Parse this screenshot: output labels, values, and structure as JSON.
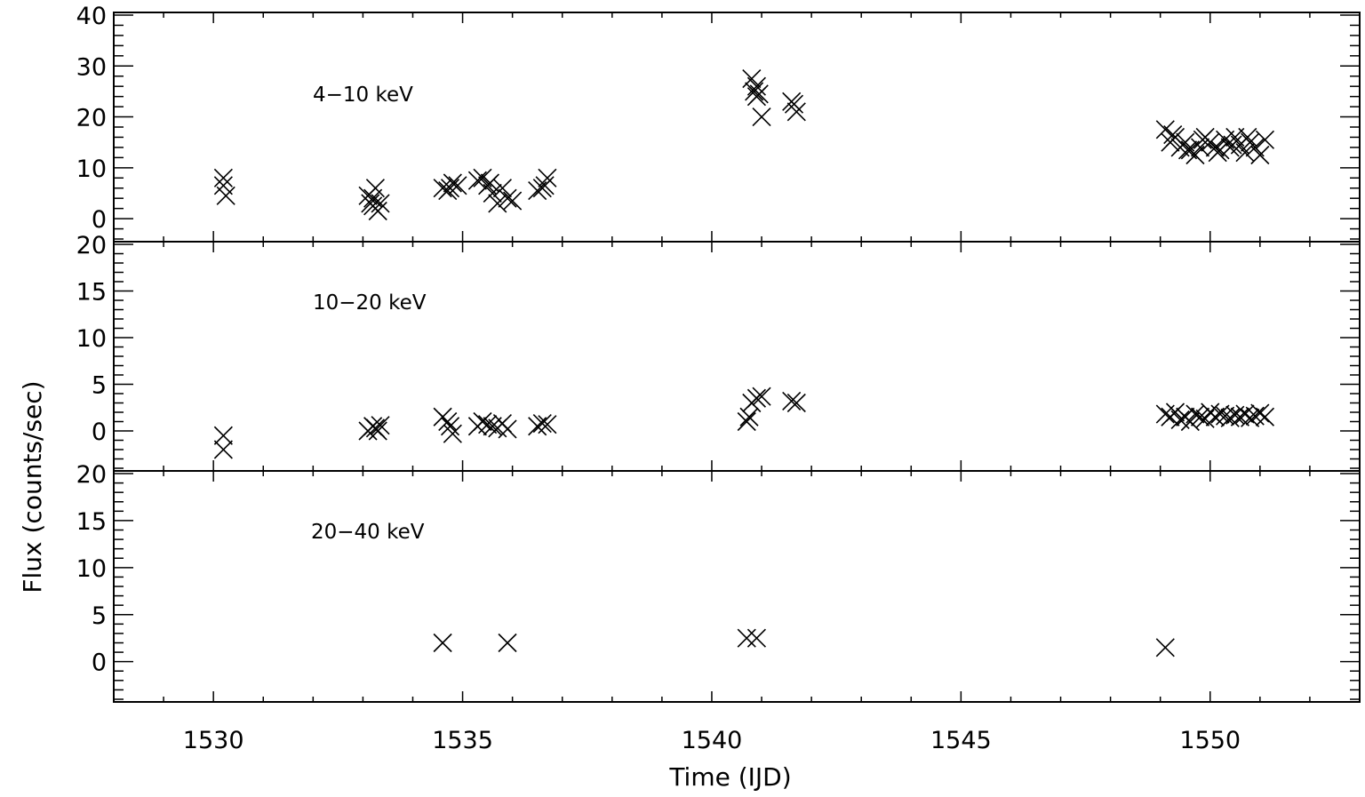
{
  "chart_data": {
    "type": "scatter",
    "xlabel": "Time (IJD)",
    "ylabel": "Flux (counts/sec)",
    "xlim": [
      1528,
      1553
    ],
    "xticks": [
      1530,
      1535,
      1540,
      1545,
      1550
    ],
    "marker": "x",
    "color": "#000000",
    "panels": [
      {
        "label": "4−10 keV",
        "ylim": [
          -4,
          40
        ],
        "yticks": [
          0,
          10,
          20,
          30,
          40
        ],
        "x": [
          1530.2,
          1530.2,
          1530.25,
          1533.1,
          1533.15,
          1533.2,
          1533.25,
          1533.3,
          1533.35,
          1533.2,
          1534.6,
          1534.7,
          1534.8,
          1534.75,
          1534.9,
          1535.3,
          1535.4,
          1535.5,
          1535.6,
          1535.7,
          1535.8,
          1535.9,
          1536.0,
          1535.55,
          1536.5,
          1536.6,
          1536.7,
          1536.65,
          1540.8,
          1540.85,
          1540.9,
          1540.95,
          1541.0,
          1540.9,
          1541.6,
          1541.7,
          1541.65,
          1549.1,
          1549.2,
          1549.3,
          1549.4,
          1549.5,
          1549.6,
          1549.7,
          1549.8,
          1549.9,
          1550.0,
          1550.1,
          1550.2,
          1550.3,
          1550.4,
          1550.5,
          1550.6,
          1550.7,
          1550.8,
          1550.9,
          1551.0,
          1551.1,
          1549.25,
          1549.55,
          1549.85,
          1550.15,
          1550.45,
          1550.75
        ],
        "y": [
          8,
          6.5,
          4.5,
          4.5,
          3,
          4,
          6,
          1.5,
          3,
          2.5,
          6,
          5.5,
          7,
          6,
          6.5,
          7.5,
          8,
          6.5,
          5,
          3,
          6,
          4,
          3.5,
          7,
          5.5,
          6,
          8,
          6.5,
          27.5,
          25,
          26,
          24.5,
          20,
          24,
          23,
          21,
          22.5,
          17.5,
          15,
          16,
          14,
          15,
          13.5,
          12.5,
          14,
          16,
          15,
          14,
          13.5,
          15.5,
          14,
          16,
          14.5,
          13,
          15,
          14,
          12.5,
          15.5,
          16.5,
          13.5,
          15.5,
          13,
          14.5,
          16
        ]
      },
      {
        "label": "10−20 keV",
        "ylim": [
          -4,
          20
        ],
        "yticks": [
          0,
          5,
          10,
          15,
          20
        ],
        "x": [
          1530.2,
          1530.2,
          1533.1,
          1533.2,
          1533.3,
          1533.25,
          1533.35,
          1534.6,
          1534.7,
          1534.8,
          1534.75,
          1535.3,
          1535.4,
          1535.5,
          1535.6,
          1535.7,
          1535.8,
          1535.9,
          1536.5,
          1536.6,
          1536.7,
          1540.7,
          1540.75,
          1540.8,
          1540.9,
          1541.0,
          1541.6,
          1541.7,
          1549.1,
          1549.2,
          1549.3,
          1549.4,
          1549.5,
          1549.6,
          1549.7,
          1549.8,
          1549.9,
          1550.0,
          1550.1,
          1550.2,
          1550.3,
          1550.4,
          1550.5,
          1550.6,
          1550.7,
          1550.8,
          1550.9,
          1551.0,
          1551.1
        ],
        "y": [
          -0.5,
          -2,
          0,
          0.5,
          0,
          0.3,
          0.6,
          1.5,
          1,
          -0.3,
          0.5,
          0.5,
          1,
          0.7,
          0.5,
          0.3,
          0.8,
          0.2,
          0.5,
          0.8,
          0.7,
          1,
          1.5,
          3,
          3.5,
          3.7,
          3.2,
          3,
          1.8,
          1.5,
          2,
          1.2,
          1.5,
          1,
          1.8,
          1.5,
          1.3,
          2,
          1.5,
          1.8,
          1.6,
          1.4,
          1.7,
          1.5,
          1.8,
          1.4,
          1.6,
          1.9,
          1.5
        ]
      },
      {
        "label": "20−40 keV",
        "ylim": [
          -4,
          20
        ],
        "yticks": [
          0,
          5,
          10,
          15,
          20
        ],
        "x": [
          1534.6,
          1535.9,
          1540.7,
          1540.9,
          1549.1
        ],
        "y": [
          2,
          2,
          2.5,
          2.5,
          1.5
        ]
      }
    ]
  }
}
